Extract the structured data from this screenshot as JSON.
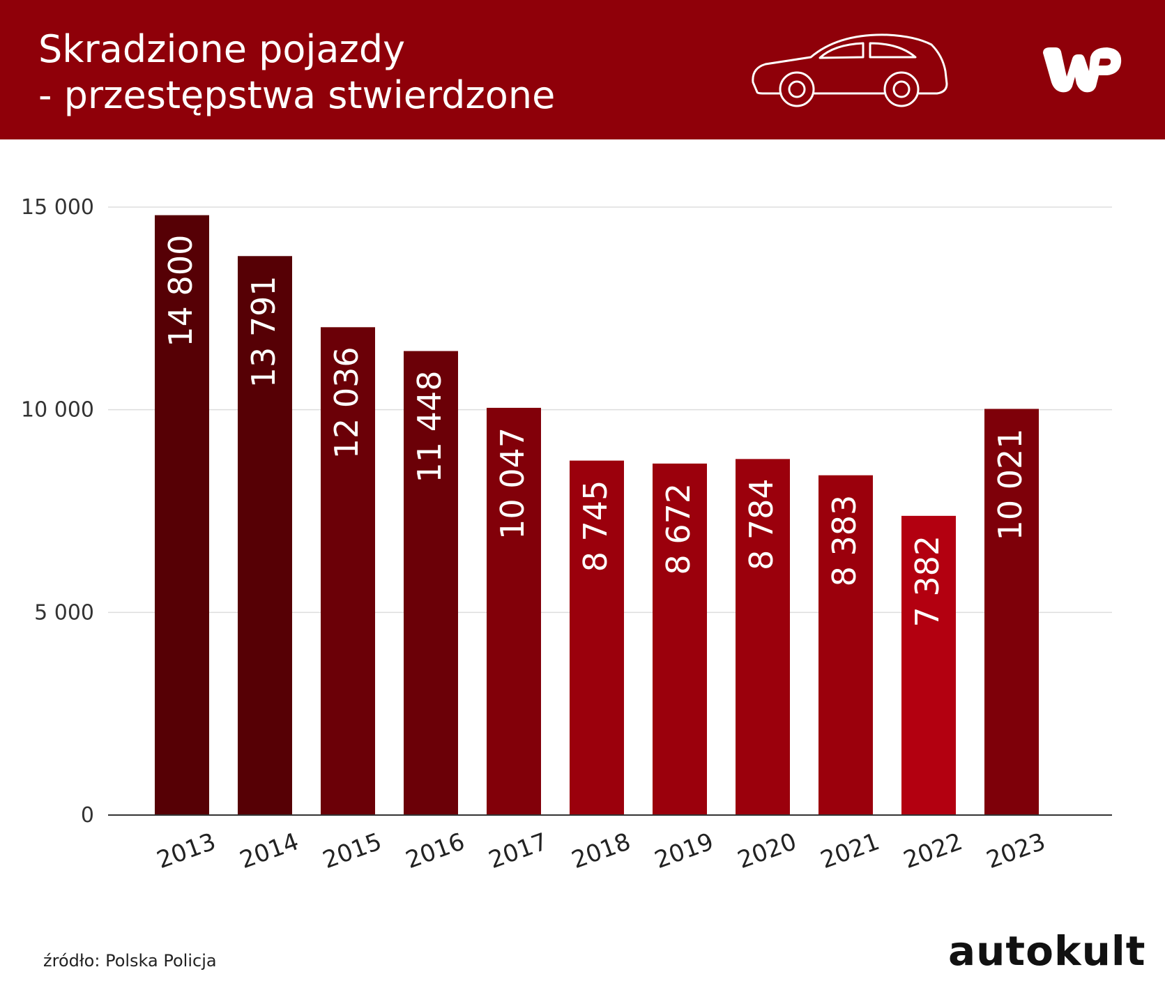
{
  "header": {
    "title_line1": "Skradzione pojazdy",
    "title_line2": "- przestępstwa stwierdzone",
    "icons": [
      "car-icon",
      "wp-logo"
    ],
    "background": "#8f0009"
  },
  "chart_data": {
    "type": "bar",
    "categories": [
      "2013",
      "2014",
      "2015",
      "2016",
      "2017",
      "2018",
      "2019",
      "2020",
      "2021",
      "2022",
      "2023"
    ],
    "values": [
      14800,
      13791,
      12036,
      11448,
      10047,
      8745,
      8672,
      8784,
      8383,
      7382,
      10021
    ],
    "value_labels": [
      "14 800",
      "13 791",
      "12 036",
      "11 448",
      "10 047",
      "8 745",
      "8 672",
      "8 784",
      "8 383",
      "7 382",
      "10 021"
    ],
    "colors": [
      "#560005",
      "#560005",
      "#6b0007",
      "#6b0007",
      "#820009",
      "#9b000c",
      "#9b000c",
      "#9b000c",
      "#9b000c",
      "#b30010",
      "#7e0009"
    ],
    "ylim": [
      0,
      15000
    ],
    "yticks": [
      0,
      5000,
      10000,
      15000
    ],
    "ytick_labels": [
      "0",
      "5 000",
      "10 000",
      "15 000"
    ],
    "grid": true,
    "title": "",
    "xlabel": "",
    "ylabel": ""
  },
  "footer": {
    "source": "źródło: Polska Policja",
    "brand": "autokult"
  }
}
